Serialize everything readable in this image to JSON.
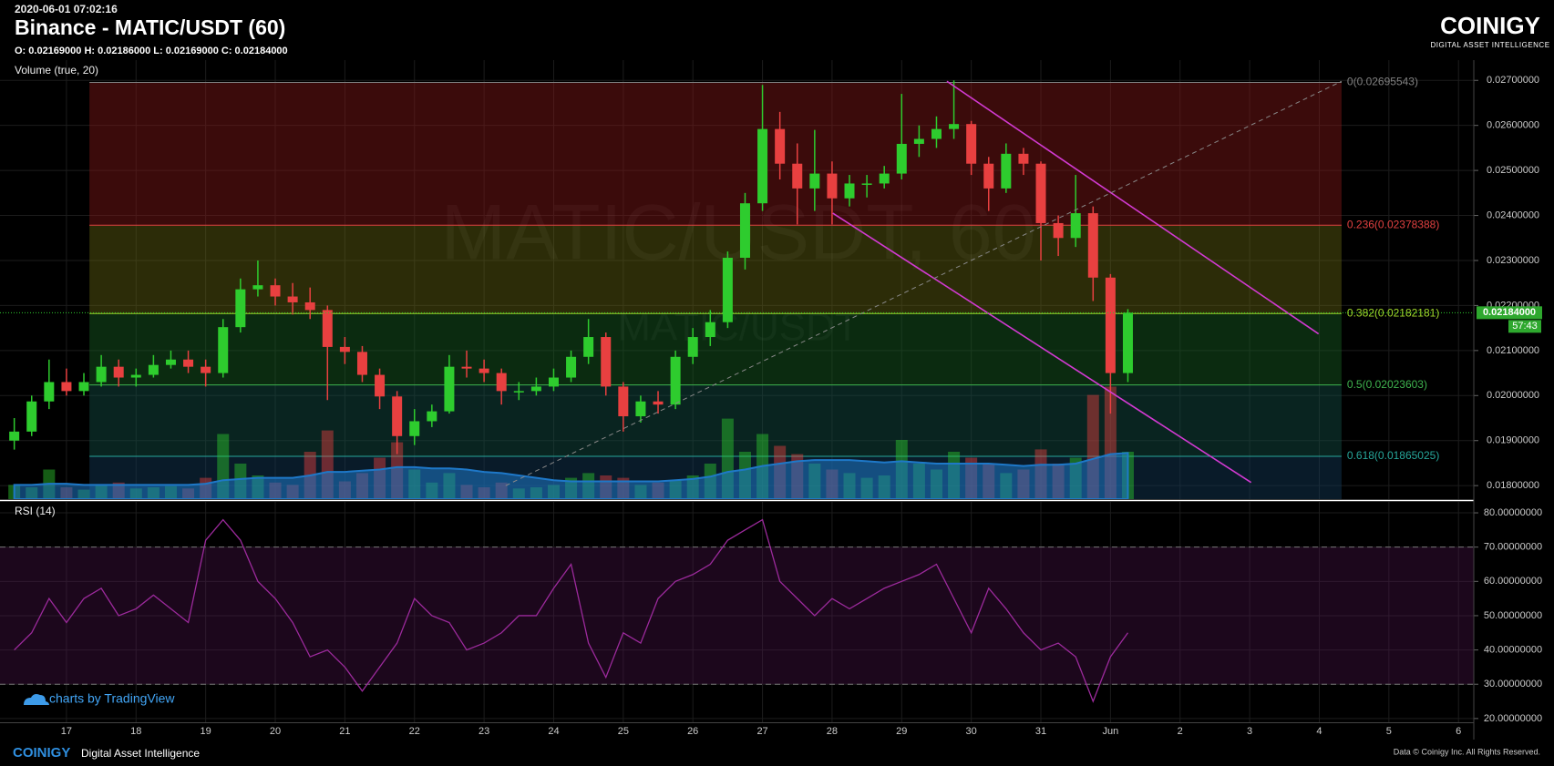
{
  "header": {
    "timestamp": "2020-06-01 07:02:16",
    "title": "Binance - MATIC/USDT (60)",
    "ohlc": "O: 0.02169000 H: 0.02186000 L: 0.02169000 C: 0.02184000",
    "logo": "COINIGY",
    "logo_tagline": "DIGITAL ASSET INTELLIGENCE"
  },
  "chart_data": {
    "type": "candlestick",
    "watermark": "MATIC/USDT, 60",
    "watermark_sub": "MATIC/USDT",
    "volume_label": "Volume (true, 20)",
    "rsi_label": "RSI (14)",
    "price_tag": "0.02184000",
    "countdown": "57:43",
    "up_color": "#2ecc2e",
    "down_color": "#e84040",
    "x": [
      16.25,
      16.5,
      16.75,
      17,
      17.25,
      17.5,
      17.75,
      18,
      18.25,
      18.5,
      18.75,
      19,
      19.25,
      19.5,
      19.75,
      20,
      20.25,
      20.5,
      20.75,
      21,
      21.25,
      21.5,
      21.75,
      22,
      22.25,
      22.5,
      22.75,
      23,
      23.25,
      23.5,
      23.75,
      24,
      24.25,
      24.5,
      24.75,
      25,
      25.25,
      25.5,
      25.75,
      26,
      26.25,
      26.5,
      26.75,
      27,
      27.25,
      27.5,
      27.75,
      28,
      28.25,
      28.5,
      28.75,
      29,
      29.25,
      29.5,
      29.75,
      30,
      30.25,
      30.5,
      30.75,
      31,
      31.25,
      31.5,
      31.75,
      32,
      32.25
    ],
    "open": [
      0.019,
      0.0192,
      0.01987,
      0.0203,
      0.0201,
      0.0203,
      0.02064,
      0.0204,
      0.02046,
      0.02068,
      0.0208,
      0.02064,
      0.0205,
      0.02152,
      0.02236,
      0.02245,
      0.0222,
      0.02207,
      0.0219,
      0.02108,
      0.02097,
      0.02046,
      0.01998,
      0.0191,
      0.01943,
      0.01965,
      0.02064,
      0.0206,
      0.0205,
      0.0201,
      0.0201,
      0.0202,
      0.0204,
      0.02086,
      0.0213,
      0.0202,
      0.01954,
      0.01987,
      0.0198,
      0.02086,
      0.0213,
      0.02163,
      0.02306,
      0.02427,
      0.02592,
      0.02515,
      0.0246,
      0.02493,
      0.02438,
      0.02471,
      0.02471,
      0.02493,
      0.02559,
      0.0257,
      0.02592,
      0.02603,
      0.02515,
      0.0246,
      0.02537,
      0.02515,
      0.02383,
      0.0235,
      0.02405,
      0.02262,
      0.0205
    ],
    "high": [
      0.0195,
      0.02,
      0.0208,
      0.0206,
      0.0205,
      0.0209,
      0.0208,
      0.0206,
      0.0209,
      0.021,
      0.021,
      0.0208,
      0.0217,
      0.0226,
      0.023,
      0.0226,
      0.0225,
      0.0224,
      0.022,
      0.0213,
      0.0211,
      0.0206,
      0.0201,
      0.0197,
      0.0198,
      0.0209,
      0.021,
      0.0208,
      0.0206,
      0.0203,
      0.0204,
      0.0206,
      0.021,
      0.0217,
      0.0214,
      0.0203,
      0.02,
      0.0201,
      0.021,
      0.0215,
      0.0219,
      0.0232,
      0.0245,
      0.0269,
      0.0263,
      0.0256,
      0.0259,
      0.0252,
      0.0249,
      0.0249,
      0.0251,
      0.0267,
      0.026,
      0.0262,
      0.027,
      0.0261,
      0.0253,
      0.0256,
      0.0255,
      0.0252,
      0.024,
      0.0249,
      0.0242,
      0.0227,
      0.02192
    ],
    "low": [
      0.0188,
      0.0191,
      0.0197,
      0.02,
      0.02,
      0.0202,
      0.0202,
      0.0202,
      0.0204,
      0.0206,
      0.0205,
      0.0202,
      0.0204,
      0.0214,
      0.0222,
      0.022,
      0.0218,
      0.0217,
      0.0199,
      0.0207,
      0.0203,
      0.0197,
      0.0187,
      0.0189,
      0.0193,
      0.0196,
      0.0204,
      0.0203,
      0.0198,
      0.0199,
      0.02,
      0.0201,
      0.0203,
      0.0207,
      0.02,
      0.0192,
      0.0194,
      0.0196,
      0.0197,
      0.0207,
      0.0211,
      0.0215,
      0.0228,
      0.0241,
      0.0248,
      0.0238,
      0.0241,
      0.0238,
      0.0242,
      0.0244,
      0.0246,
      0.0248,
      0.0253,
      0.0255,
      0.0257,
      0.0249,
      0.0241,
      0.0245,
      0.0249,
      0.023,
      0.0231,
      0.0233,
      0.0221,
      0.0196,
      0.0203
    ],
    "close": [
      0.0192,
      0.01987,
      0.0203,
      0.0201,
      0.0203,
      0.02064,
      0.0204,
      0.02046,
      0.02068,
      0.0208,
      0.02064,
      0.0205,
      0.02152,
      0.02236,
      0.02245,
      0.0222,
      0.02207,
      0.0219,
      0.02108,
      0.02097,
      0.02046,
      0.01998,
      0.0191,
      0.01943,
      0.01965,
      0.02064,
      0.0206,
      0.0205,
      0.0201,
      0.0201,
      0.0202,
      0.0204,
      0.02086,
      0.0213,
      0.0202,
      0.01954,
      0.01987,
      0.0198,
      0.02086,
      0.0213,
      0.02163,
      0.02306,
      0.02427,
      0.02592,
      0.02515,
      0.0246,
      0.02493,
      0.02438,
      0.02471,
      0.02471,
      0.02493,
      0.02559,
      0.0257,
      0.02592,
      0.02603,
      0.02515,
      0.0246,
      0.02537,
      0.02515,
      0.02383,
      0.0235,
      0.02405,
      0.02262,
      0.0205,
      0.02184
    ],
    "volume": [
      12,
      10,
      25,
      10,
      8,
      12,
      14,
      9,
      10,
      11,
      9,
      18,
      55,
      30,
      20,
      14,
      12,
      40,
      58,
      15,
      22,
      35,
      48,
      25,
      14,
      22,
      12,
      10,
      14,
      9,
      10,
      12,
      18,
      22,
      20,
      18,
      12,
      14,
      16,
      20,
      30,
      68,
      40,
      55,
      45,
      38,
      30,
      25,
      22,
      18,
      20,
      50,
      30,
      25,
      40,
      35,
      30,
      22,
      25,
      42,
      30,
      35,
      88,
      95,
      40
    ],
    "volume_ma": [
      12,
      12,
      13,
      13,
      12,
      12,
      12,
      12,
      12,
      12,
      12,
      13,
      16,
      17,
      18,
      18,
      18,
      20,
      23,
      23,
      24,
      25,
      27,
      27,
      26,
      26,
      25,
      23,
      22,
      20,
      18,
      16,
      15,
      15,
      15,
      15,
      15,
      15,
      16,
      17,
      19,
      23,
      25,
      28,
      30,
      32,
      33,
      33,
      33,
      32,
      31,
      32,
      31,
      30,
      30,
      30,
      30,
      29,
      28,
      29,
      29,
      30,
      34,
      38,
      39
    ],
    "volume_ma_color": "#1e78c8",
    "vlim": [
      0,
      100
    ],
    "xlim": [
      16.045,
      37.22
    ],
    "xticks": [
      17,
      18,
      19,
      20,
      21,
      22,
      23,
      24,
      25,
      26,
      27,
      28,
      29,
      30,
      31,
      {
        "value": 32,
        "label": "Jun"
      },
      {
        "value": 33,
        "label": "2"
      },
      {
        "value": 34,
        "label": "3"
      },
      {
        "value": 35,
        "label": "4"
      },
      {
        "value": 36,
        "label": "5"
      },
      {
        "value": 37,
        "label": "6"
      }
    ],
    "ylim": [
      0.0177,
      0.02745
    ],
    "yticks": [
      {
        "value": 0.018,
        "label": "0.01800000"
      },
      {
        "value": 0.019,
        "label": "0.01900000"
      },
      {
        "value": 0.02,
        "label": "0.02000000"
      },
      {
        "value": 0.021,
        "label": "0.02100000"
      },
      {
        "value": 0.022,
        "label": "0.02200000"
      },
      {
        "value": 0.023,
        "label": "0.02300000"
      },
      {
        "value": 0.024,
        "label": "0.02400000"
      },
      {
        "value": 0.025,
        "label": "0.02500000"
      },
      {
        "value": 0.026,
        "label": "0.02600000"
      },
      {
        "value": 0.027,
        "label": "0.02700000"
      }
    ],
    "grid": true,
    "fib_x": [
      17.33,
      35.32
    ],
    "fib_levels": [
      {
        "label": "0(0.02695543)",
        "value": 0.02695543,
        "color": "#808080",
        "fill": "rgba(130,25,25,0.45)"
      },
      {
        "label": "0.236(0.02378388)",
        "value": 0.02378388,
        "color": "#e04040",
        "fill": "rgba(110,110,20,0.4)"
      },
      {
        "label": "0.382(0.02182181)",
        "value": 0.02182181,
        "color": "#9fd62a",
        "fill": "rgba(25,95,35,0.45)"
      },
      {
        "label": "0.5(0.02023603)",
        "value": 0.02023603,
        "color": "#3fb34f",
        "fill": "rgba(20,80,70,0.45)"
      },
      {
        "label": "0.618(0.01865025)",
        "value": 0.01865025,
        "color": "#26a69a",
        "fill": "rgba(20,60,90,0.45)"
      }
    ],
    "trendlines": [
      {
        "points": [
          [
            29.65,
            0.02698
          ],
          [
            34.99,
            0.02137
          ]
        ],
        "color": "#d23ad2",
        "dashed": false
      },
      {
        "points": [
          [
            28.01,
            0.02405
          ],
          [
            34.02,
            0.01807
          ]
        ],
        "color": "#d23ad2",
        "dashed": false
      },
      {
        "points": [
          [
            23.31,
            0.018
          ],
          [
            35.32,
            0.02698
          ]
        ],
        "color": "#888888",
        "dashed": true
      }
    ],
    "rsi": {
      "values": [
        40,
        45,
        55,
        48,
        55,
        58,
        50,
        52,
        56,
        52,
        48,
        72,
        78,
        72,
        60,
        55,
        48,
        38,
        40,
        35,
        28,
        35,
        42,
        55,
        50,
        48,
        40,
        42,
        45,
        50,
        50,
        58,
        65,
        42,
        32,
        45,
        42,
        55,
        60,
        62,
        65,
        72,
        75,
        78,
        60,
        55,
        50,
        55,
        52,
        55,
        58,
        60,
        62,
        65,
        55,
        45,
        58,
        52,
        45,
        40,
        42,
        38,
        25,
        38,
        45
      ],
      "color": "#9c2a9c",
      "lim": [
        18.9,
        83.2
      ],
      "bands": [
        30,
        70
      ],
      "ticks": [
        {
          "value": 20,
          "label": "20.00000000"
        },
        {
          "value": 30,
          "label": "30.00000000"
        },
        {
          "value": 40,
          "label": "40.00000000"
        },
        {
          "value": 50,
          "label": "50.00000000"
        },
        {
          "value": 60,
          "label": "60.00000000"
        },
        {
          "value": 70,
          "label": "70.00000000"
        },
        {
          "value": 80,
          "label": "80.00000000"
        }
      ]
    }
  },
  "footer": {
    "attribution": "charts by TradingView",
    "brand": "COINIGY",
    "tagline": "Digital Asset Intelligence",
    "copyright": "Data © Coinigy Inc.  All Rights Reserved."
  }
}
